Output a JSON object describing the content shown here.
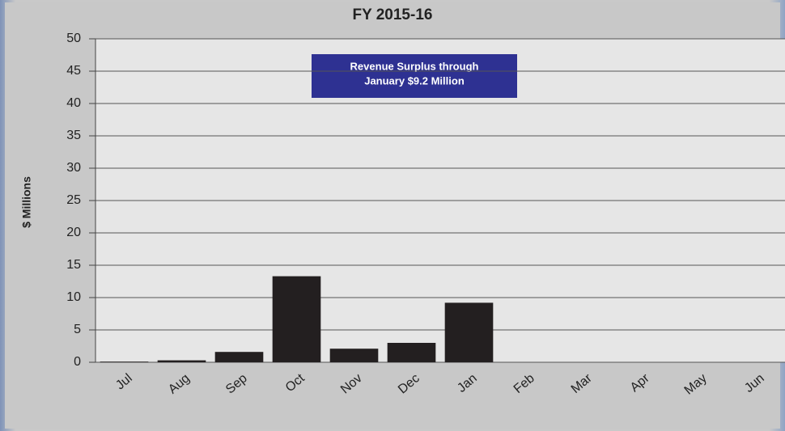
{
  "chart_data": {
    "type": "bar",
    "title": "FY 2015-16",
    "y_label": "$ Millions",
    "annotation": [
      "Revenue Surplus through",
      "January $9.2 Million"
    ],
    "categories": [
      "Jul",
      "Aug",
      "Sep",
      "Oct",
      "Nov",
      "Dec",
      "Jan",
      "Feb",
      "Mar",
      "Apr",
      "May",
      "Jun"
    ],
    "values": [
      0.1,
      0.3,
      1.6,
      13.3,
      2.1,
      3.0,
      9.2,
      null,
      null,
      null,
      null,
      null
    ],
    "color": "#231f20",
    "ylim": [
      0,
      50
    ],
    "yticks": [
      0,
      5,
      10,
      15,
      20,
      25,
      30,
      35,
      40,
      45,
      50
    ],
    "grid": true
  }
}
